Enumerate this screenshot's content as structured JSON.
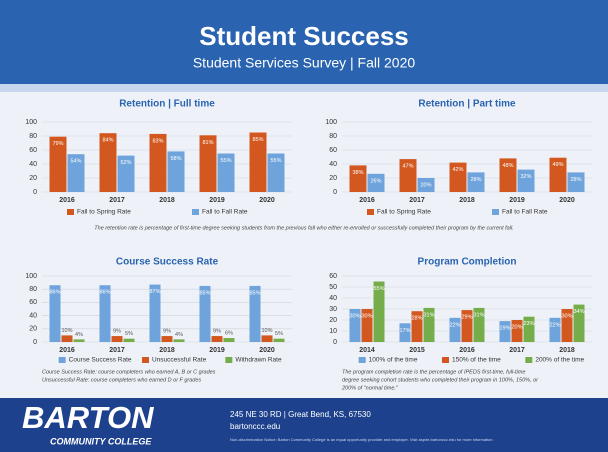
{
  "header": {
    "title": "Student Success",
    "subtitle": "Student Services Survey | Fall 2020"
  },
  "chart_data": [
    {
      "type": "bar",
      "title": "Retention | Full time",
      "categories": [
        "2016",
        "2017",
        "2018",
        "2019",
        "2020"
      ],
      "series": [
        {
          "name": "Fall to Spring Rate",
          "color": "#d2581f",
          "values": [
            79,
            84,
            83,
            81,
            85
          ],
          "value_labels": [
            "79%",
            "84%",
            "83%",
            "81%",
            "85%"
          ]
        },
        {
          "name": "Fall to Fall Rate",
          "color": "#6fa3db",
          "values": [
            54,
            52,
            58,
            55,
            55
          ],
          "value_labels": [
            "54%",
            "52%",
            "58%",
            "55%",
            "55%"
          ]
        }
      ],
      "ylim": [
        0,
        100
      ],
      "yticks": [
        0,
        20,
        40,
        60,
        80,
        100
      ],
      "grid": true,
      "legend": "bottom",
      "notes": [
        "The retention rate is percentage of first-time degree seeking students from the previous fall who either re-enrolled or successfully completed their program by the current fall."
      ]
    },
    {
      "type": "bar",
      "title": "Retention | Part time",
      "categories": [
        "2016",
        "2017",
        "2018",
        "2019",
        "2020"
      ],
      "series": [
        {
          "name": "Fall to Spring Rate",
          "color": "#d2581f",
          "values": [
            38,
            47,
            42,
            48,
            49
          ],
          "value_labels": [
            "38%",
            "47%",
            "42%",
            "48%",
            "49%"
          ]
        },
        {
          "name": "Fall to Fall Rate",
          "color": "#6fa3db",
          "values": [
            26,
            20,
            28,
            32,
            28
          ],
          "value_labels": [
            "26%",
            "20%",
            "28%",
            "32%",
            "28%"
          ]
        }
      ],
      "ylim": [
        0,
        100
      ],
      "yticks": [
        0,
        20,
        40,
        60,
        80,
        100
      ],
      "grid": true,
      "legend": "bottom"
    },
    {
      "type": "bar",
      "title": "Course Success Rate",
      "categories": [
        "2016",
        "2017",
        "2018",
        "2019",
        "2020"
      ],
      "series": [
        {
          "name": "Course Success Rate",
          "color": "#6fa3db",
          "values": [
            86,
            86,
            87,
            85,
            85
          ],
          "value_labels": [
            "86%",
            "86%",
            "87%",
            "85%",
            "85%"
          ]
        },
        {
          "name": "Unsuccessful Rate",
          "color": "#d2581f",
          "values": [
            10,
            9,
            9,
            9,
            10
          ],
          "value_labels": [
            "10%",
            "9%",
            "9%",
            "9%",
            "10%"
          ]
        },
        {
          "name": "Withdrawn Rate",
          "color": "#74ad4a",
          "values": [
            4,
            5,
            4,
            6,
            5
          ],
          "value_labels": [
            "4%",
            "5%",
            "4%",
            "6%",
            "5%"
          ]
        }
      ],
      "ylim": [
        0,
        100
      ],
      "yticks": [
        0,
        20,
        40,
        60,
        80,
        100
      ],
      "grid": true,
      "legend": "bottom",
      "notes": [
        "Course Success Rate: course completers who earned A, B or C grades",
        "Unsuccessful Rate: course completers who earned D or F grades"
      ]
    },
    {
      "type": "bar",
      "title": "Program Completion",
      "categories": [
        "2014",
        "2015",
        "2016",
        "2017",
        "2018"
      ],
      "series": [
        {
          "name": "100% of the time",
          "color": "#6fa3db",
          "values": [
            30,
            17,
            22,
            19,
            22
          ],
          "value_labels": [
            "30%",
            "17%",
            "22%",
            "19%",
            "22%"
          ]
        },
        {
          "name": "150% of the time",
          "color": "#d2581f",
          "values": [
            30,
            28,
            29,
            20,
            30
          ],
          "value_labels": [
            "30%",
            "28%",
            "29%",
            "20%",
            "30%"
          ]
        },
        {
          "name": "200% of the time",
          "color": "#74ad4a",
          "values": [
            55,
            31,
            31,
            23,
            34
          ],
          "value_labels": [
            "55%",
            "31%",
            "31%",
            "23%",
            "34%"
          ]
        }
      ],
      "ylim": [
        0,
        60
      ],
      "yticks": [
        0,
        10,
        20,
        30,
        40,
        50,
        60
      ],
      "grid": true,
      "legend": "bottom",
      "notes": [
        "The program completion rate is the percentage of IPEDS first-time, full-time",
        "degree seeking cohort students who completed their program in 100%, 150%, or",
        "200% of \"normal time.\""
      ]
    }
  ],
  "footer": {
    "name": "BARTON",
    "subname": "COMMUNITY COLLEGE",
    "address": "245 NE 30 RD | Great Bend, KS, 67530",
    "url": "bartonccc.edu",
    "notice": "Non-discrimination Notice: Barton Community College is an equal opportunity provider and employer. Visit aspire.bartonccc.edu for more information."
  }
}
